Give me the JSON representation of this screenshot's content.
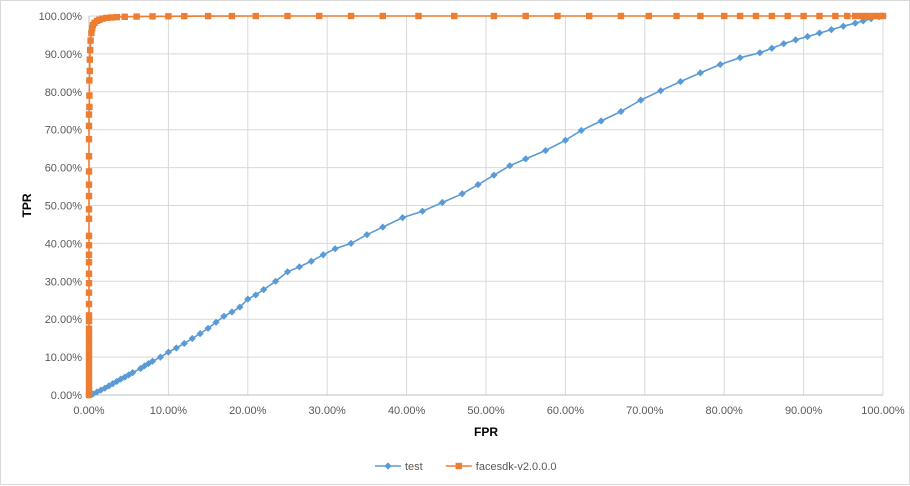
{
  "chart_data": {
    "type": "line",
    "xlabel": "FPR",
    "ylabel": "TPR",
    "xlim": [
      0,
      100
    ],
    "ylim": [
      0,
      100
    ],
    "x_ticks": [
      "0.00%",
      "10.00%",
      "20.00%",
      "30.00%",
      "40.00%",
      "50.00%",
      "60.00%",
      "70.00%",
      "80.00%",
      "90.00%",
      "100.00%"
    ],
    "y_ticks": [
      "0.00%",
      "10.00%",
      "20.00%",
      "30.00%",
      "40.00%",
      "50.00%",
      "60.00%",
      "70.00%",
      "80.00%",
      "90.00%",
      "100.00%"
    ],
    "grid": true,
    "legend_position": "bottom",
    "series": [
      {
        "name": "test",
        "color": "#5B9BD5",
        "marker": "diamond",
        "points": [
          [
            0,
            0
          ],
          [
            0.5,
            0.3
          ],
          [
            1,
            0.8
          ],
          [
            1.5,
            1.3
          ],
          [
            2,
            1.8
          ],
          [
            2.5,
            2.4
          ],
          [
            3,
            3.0
          ],
          [
            3.5,
            3.6
          ],
          [
            4,
            4.2
          ],
          [
            4.5,
            4.7
          ],
          [
            5,
            5.3
          ],
          [
            5.5,
            5.9
          ],
          [
            6.5,
            7.0
          ],
          [
            7,
            7.7
          ],
          [
            7.5,
            8.3
          ],
          [
            8,
            8.9
          ],
          [
            9,
            10.0
          ],
          [
            10,
            11.3
          ],
          [
            11,
            12.4
          ],
          [
            12,
            13.6
          ],
          [
            13,
            14.9
          ],
          [
            14,
            16.2
          ],
          [
            15,
            17.6
          ],
          [
            16,
            19.2
          ],
          [
            17,
            20.8
          ],
          [
            18,
            21.9
          ],
          [
            19,
            23.2
          ],
          [
            20,
            25.3
          ],
          [
            21,
            26.4
          ],
          [
            22,
            27.8
          ],
          [
            23.5,
            30.0
          ],
          [
            25,
            32.5
          ],
          [
            26.5,
            33.8
          ],
          [
            28,
            35.3
          ],
          [
            29.5,
            37.0
          ],
          [
            31,
            38.6
          ],
          [
            33,
            40.0
          ],
          [
            35,
            42.3
          ],
          [
            37,
            44.3
          ],
          [
            39.5,
            46.8
          ],
          [
            42,
            48.5
          ],
          [
            44.5,
            50.8
          ],
          [
            47,
            53.1
          ],
          [
            49,
            55.5
          ],
          [
            51,
            58.0
          ],
          [
            53,
            60.5
          ],
          [
            55,
            62.3
          ],
          [
            57.5,
            64.5
          ],
          [
            60,
            67.2
          ],
          [
            62,
            69.8
          ],
          [
            64.5,
            72.3
          ],
          [
            67,
            74.8
          ],
          [
            69.5,
            77.8
          ],
          [
            72,
            80.3
          ],
          [
            74.5,
            82.7
          ],
          [
            77,
            85.0
          ],
          [
            79.5,
            87.2
          ],
          [
            82,
            89.0
          ],
          [
            84.5,
            90.3
          ],
          [
            86,
            91.5
          ],
          [
            87.5,
            92.7
          ],
          [
            89,
            93.7
          ],
          [
            90.5,
            94.6
          ],
          [
            92,
            95.5
          ],
          [
            93.5,
            96.4
          ],
          [
            95,
            97.3
          ],
          [
            96.5,
            98.1
          ],
          [
            97.5,
            98.7
          ],
          [
            98.5,
            99.3
          ],
          [
            99.5,
            99.8
          ],
          [
            100,
            100
          ]
        ]
      },
      {
        "name": "facesdk-v2.0.0.0",
        "color": "#ED7D31",
        "marker": "square",
        "points": [
          [
            0,
            0
          ],
          [
            0,
            1.2
          ],
          [
            0,
            2.5
          ],
          [
            0,
            4
          ],
          [
            0,
            5.5
          ],
          [
            0,
            7
          ],
          [
            0,
            8.5
          ],
          [
            0,
            10
          ],
          [
            0,
            11.5
          ],
          [
            0,
            13
          ],
          [
            0,
            14.5
          ],
          [
            0,
            16
          ],
          [
            0,
            17.5
          ],
          [
            0,
            19.5
          ],
          [
            0,
            21
          ],
          [
            0,
            24
          ],
          [
            0,
            27
          ],
          [
            0,
            29.5
          ],
          [
            0,
            32
          ],
          [
            0,
            35
          ],
          [
            0,
            37
          ],
          [
            0,
            39.5
          ],
          [
            0,
            42
          ],
          [
            0,
            46.5
          ],
          [
            0,
            49
          ],
          [
            0,
            52.5
          ],
          [
            0,
            55.5
          ],
          [
            0,
            59
          ],
          [
            0,
            63
          ],
          [
            0,
            67.5
          ],
          [
            0,
            71
          ],
          [
            0,
            74
          ],
          [
            0.05,
            76
          ],
          [
            0.05,
            79
          ],
          [
            0.05,
            83
          ],
          [
            0.1,
            85.5
          ],
          [
            0.1,
            88.5
          ],
          [
            0.15,
            91
          ],
          [
            0.2,
            93.5
          ],
          [
            0.3,
            95.5
          ],
          [
            0.4,
            96.8
          ],
          [
            0.5,
            97.6
          ],
          [
            0.7,
            98.2
          ],
          [
            1,
            98.7
          ],
          [
            1.3,
            99.0
          ],
          [
            1.7,
            99.3
          ],
          [
            2.2,
            99.5
          ],
          [
            2.8,
            99.6
          ],
          [
            3.5,
            99.7
          ],
          [
            4.5,
            99.8
          ],
          [
            6,
            99.85
          ],
          [
            8,
            99.9
          ],
          [
            10,
            99.92
          ],
          [
            12,
            99.95
          ],
          [
            15,
            99.97
          ],
          [
            18,
            99.98
          ],
          [
            21,
            99.99
          ],
          [
            25,
            100
          ],
          [
            29,
            100
          ],
          [
            33,
            100
          ],
          [
            37,
            100
          ],
          [
            41.5,
            100
          ],
          [
            46,
            100
          ],
          [
            51,
            100
          ],
          [
            55,
            100
          ],
          [
            59,
            100
          ],
          [
            63,
            100
          ],
          [
            67,
            100
          ],
          [
            70.5,
            100
          ],
          [
            74,
            100
          ],
          [
            77,
            100
          ],
          [
            80,
            100
          ],
          [
            82,
            100
          ],
          [
            84,
            100
          ],
          [
            86,
            100
          ],
          [
            88,
            100
          ],
          [
            90,
            100
          ],
          [
            92,
            100
          ],
          [
            94,
            100
          ],
          [
            95.5,
            100
          ],
          [
            96.5,
            100
          ],
          [
            97.3,
            100
          ],
          [
            98,
            100
          ],
          [
            98.8,
            100
          ],
          [
            99.4,
            100
          ],
          [
            100,
            100
          ]
        ]
      }
    ]
  }
}
